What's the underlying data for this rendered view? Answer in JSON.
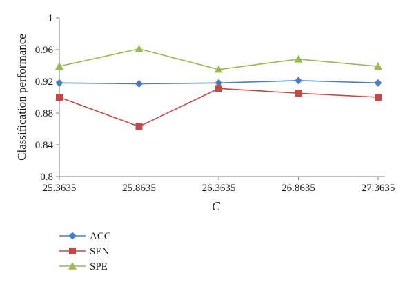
{
  "chart_data": {
    "type": "line",
    "title": "",
    "xlabel": "C",
    "ylabel": "Classification performance",
    "categories": [
      "25.3635",
      "25.8635",
      "26.3635",
      "26.8635",
      "27.3635"
    ],
    "ylim": [
      0.8,
      1
    ],
    "yticks": [
      "0.8",
      "0.84",
      "0.88",
      "0.92",
      "0.96",
      "1"
    ],
    "grid": false,
    "legend_position": "bottom-left",
    "series": [
      {
        "name": "ACC",
        "color": "#4a7ebb",
        "marker": "diamond",
        "values": [
          0.918,
          0.917,
          0.918,
          0.921,
          0.918
        ]
      },
      {
        "name": "SEN",
        "color": "#be4b48",
        "marker": "square",
        "values": [
          0.9,
          0.863,
          0.911,
          0.905,
          0.9
        ]
      },
      {
        "name": "SPE",
        "color": "#98b954",
        "marker": "triangle",
        "values": [
          0.939,
          0.961,
          0.935,
          0.948,
          0.939
        ]
      }
    ]
  }
}
